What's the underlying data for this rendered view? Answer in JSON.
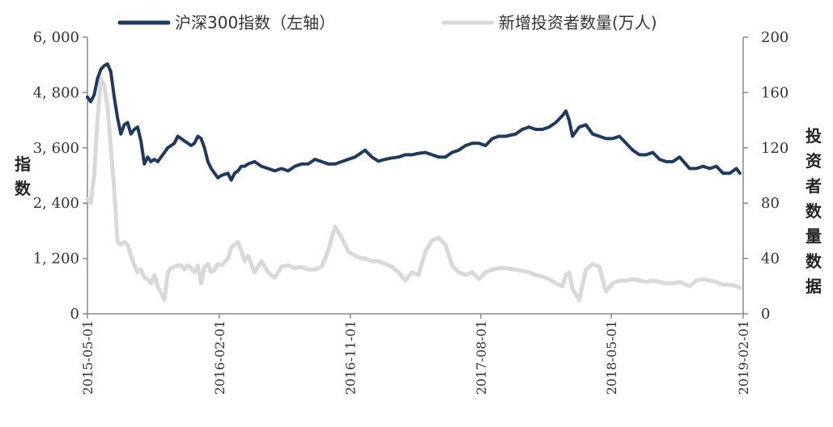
{
  "chart_data": {
    "type": "line",
    "legend": {
      "placement": "top",
      "items": [
        {
          "series": "index",
          "label": "沪深300指数（左轴）",
          "color": "#1f3a60"
        },
        {
          "series": "investors",
          "label": "新增投资者数量(万人)",
          "color": "#d9d9d9"
        }
      ]
    },
    "x_ticks": [
      "2015-05-01",
      "2016-02-01",
      "2016-11-01",
      "2017-08-01",
      "2018-05-01",
      "2019-02-01"
    ],
    "x_range": [
      "2015-05-01",
      "2019-02-01"
    ],
    "y_left": {
      "label": "指数",
      "range": [
        0,
        6000
      ],
      "ticks": [
        0,
        1200,
        2400,
        3600,
        4800,
        6000
      ],
      "tick_labels": [
        "0",
        "1, 200",
        "2, 400",
        "3, 600",
        "4, 800",
        "6, 000"
      ]
    },
    "y_right": {
      "label": "投资者数量数据",
      "range": [
        0,
        200
      ],
      "ticks": [
        0,
        40,
        80,
        120,
        160,
        200
      ],
      "tick_labels": [
        "0",
        "40",
        "80",
        "120",
        "160",
        "200"
      ]
    },
    "series": [
      {
        "key": "index",
        "name": "沪深300指数（左轴）",
        "axis": "left",
        "color": "#1f3a60",
        "points": [
          [
            "2015-05-01",
            4700
          ],
          [
            "2015-05-08",
            4600
          ],
          [
            "2015-05-15",
            4750
          ],
          [
            "2015-05-22",
            5100
          ],
          [
            "2015-05-29",
            5300
          ],
          [
            "2015-06-05",
            5380
          ],
          [
            "2015-06-12",
            5420
          ],
          [
            "2015-06-19",
            5250
          ],
          [
            "2015-06-26",
            4700
          ],
          [
            "2015-07-03",
            4250
          ],
          [
            "2015-07-10",
            3900
          ],
          [
            "2015-07-17",
            4100
          ],
          [
            "2015-07-24",
            4150
          ],
          [
            "2015-07-31",
            3900
          ],
          [
            "2015-08-07",
            4000
          ],
          [
            "2015-08-14",
            4050
          ],
          [
            "2015-08-21",
            3750
          ],
          [
            "2015-08-28",
            3250
          ],
          [
            "2015-09-04",
            3400
          ],
          [
            "2015-09-11",
            3300
          ],
          [
            "2015-09-18",
            3350
          ],
          [
            "2015-09-25",
            3300
          ],
          [
            "2015-10-09",
            3500
          ],
          [
            "2015-10-16",
            3600
          ],
          [
            "2015-10-23",
            3650
          ],
          [
            "2015-10-30",
            3700
          ],
          [
            "2015-11-06",
            3850
          ],
          [
            "2015-11-13",
            3800
          ],
          [
            "2015-11-20",
            3750
          ],
          [
            "2015-11-27",
            3700
          ],
          [
            "2015-12-04",
            3650
          ],
          [
            "2015-12-11",
            3700
          ],
          [
            "2015-12-18",
            3850
          ],
          [
            "2015-12-25",
            3800
          ],
          [
            "2016-01-01",
            3600
          ],
          [
            "2016-01-08",
            3300
          ],
          [
            "2016-01-15",
            3150
          ],
          [
            "2016-01-22",
            3050
          ],
          [
            "2016-01-29",
            2950
          ],
          [
            "2016-02-05",
            3000
          ],
          [
            "2016-02-19",
            3050
          ],
          [
            "2016-02-26",
            2900
          ],
          [
            "2016-03-04",
            3050
          ],
          [
            "2016-03-11",
            3100
          ],
          [
            "2016-03-18",
            3200
          ],
          [
            "2016-03-25",
            3200
          ],
          [
            "2016-04-01",
            3250
          ],
          [
            "2016-04-15",
            3300
          ],
          [
            "2016-04-29",
            3200
          ],
          [
            "2016-05-13",
            3150
          ],
          [
            "2016-05-27",
            3100
          ],
          [
            "2016-06-10",
            3150
          ],
          [
            "2016-06-24",
            3100
          ],
          [
            "2016-07-08",
            3200
          ],
          [
            "2016-07-22",
            3250
          ],
          [
            "2016-08-05",
            3250
          ],
          [
            "2016-08-19",
            3350
          ],
          [
            "2016-09-02",
            3300
          ],
          [
            "2016-09-16",
            3250
          ],
          [
            "2016-09-30",
            3250
          ],
          [
            "2016-10-14",
            3300
          ],
          [
            "2016-10-28",
            3350
          ],
          [
            "2016-11-11",
            3400
          ],
          [
            "2016-11-25",
            3500
          ],
          [
            "2016-12-02",
            3550
          ],
          [
            "2016-12-16",
            3400
          ],
          [
            "2016-12-30",
            3310
          ],
          [
            "2017-01-13",
            3350
          ],
          [
            "2017-01-27",
            3380
          ],
          [
            "2017-02-10",
            3400
          ],
          [
            "2017-02-24",
            3450
          ],
          [
            "2017-03-10",
            3450
          ],
          [
            "2017-03-24",
            3480
          ],
          [
            "2017-04-07",
            3500
          ],
          [
            "2017-04-21",
            3450
          ],
          [
            "2017-05-05",
            3400
          ],
          [
            "2017-05-19",
            3400
          ],
          [
            "2017-06-02",
            3500
          ],
          [
            "2017-06-16",
            3550
          ],
          [
            "2017-06-30",
            3650
          ],
          [
            "2017-07-14",
            3700
          ],
          [
            "2017-07-28",
            3700
          ],
          [
            "2017-08-11",
            3650
          ],
          [
            "2017-08-25",
            3800
          ],
          [
            "2017-09-08",
            3850
          ],
          [
            "2017-09-22",
            3850
          ],
          [
            "2017-10-13",
            3900
          ],
          [
            "2017-10-27",
            4000
          ],
          [
            "2017-11-10",
            4050
          ],
          [
            "2017-11-24",
            4000
          ],
          [
            "2017-12-08",
            4000
          ],
          [
            "2017-12-22",
            4050
          ],
          [
            "2018-01-05",
            4150
          ],
          [
            "2018-01-19",
            4300
          ],
          [
            "2018-01-26",
            4400
          ],
          [
            "2018-02-02",
            4200
          ],
          [
            "2018-02-09",
            3850
          ],
          [
            "2018-02-23",
            4050
          ],
          [
            "2018-03-09",
            4100
          ],
          [
            "2018-03-23",
            3900
          ],
          [
            "2018-04-06",
            3850
          ],
          [
            "2018-04-20",
            3800
          ],
          [
            "2018-05-04",
            3800
          ],
          [
            "2018-05-18",
            3850
          ],
          [
            "2018-06-01",
            3700
          ],
          [
            "2018-06-15",
            3550
          ],
          [
            "2018-06-29",
            3450
          ],
          [
            "2018-07-13",
            3450
          ],
          [
            "2018-07-27",
            3500
          ],
          [
            "2018-08-10",
            3350
          ],
          [
            "2018-08-24",
            3300
          ],
          [
            "2018-09-07",
            3300
          ],
          [
            "2018-09-21",
            3400
          ],
          [
            "2018-10-12",
            3150
          ],
          [
            "2018-10-26",
            3150
          ],
          [
            "2018-11-09",
            3200
          ],
          [
            "2018-11-23",
            3150
          ],
          [
            "2018-12-07",
            3200
          ],
          [
            "2018-12-21",
            3050
          ],
          [
            "2019-01-04",
            3050
          ],
          [
            "2019-01-18",
            3150
          ],
          [
            "2019-01-25",
            3050
          ]
        ]
      },
      {
        "key": "investors",
        "name": "新增投资者数量(万人)",
        "axis": "right",
        "color": "#d9d9d9",
        "points": [
          [
            "2015-05-01",
            83
          ],
          [
            "2015-05-08",
            80
          ],
          [
            "2015-05-15",
            100
          ],
          [
            "2015-05-22",
            140
          ],
          [
            "2015-05-29",
            170
          ],
          [
            "2015-06-05",
            165
          ],
          [
            "2015-06-12",
            150
          ],
          [
            "2015-06-19",
            120
          ],
          [
            "2015-06-26",
            90
          ],
          [
            "2015-07-03",
            52
          ],
          [
            "2015-07-10",
            50
          ],
          [
            "2015-07-17",
            52
          ],
          [
            "2015-07-24",
            50
          ],
          [
            "2015-07-31",
            42
          ],
          [
            "2015-08-07",
            35
          ],
          [
            "2015-08-14",
            30
          ],
          [
            "2015-08-21",
            32
          ],
          [
            "2015-08-28",
            26
          ],
          [
            "2015-09-04",
            25
          ],
          [
            "2015-09-11",
            22
          ],
          [
            "2015-09-18",
            28
          ],
          [
            "2015-09-25",
            20
          ],
          [
            "2015-10-09",
            10
          ],
          [
            "2015-10-16",
            30
          ],
          [
            "2015-10-23",
            33
          ],
          [
            "2015-10-30",
            34
          ],
          [
            "2015-11-06",
            35
          ],
          [
            "2015-11-13",
            35
          ],
          [
            "2015-11-20",
            32
          ],
          [
            "2015-11-27",
            35
          ],
          [
            "2015-12-04",
            33
          ],
          [
            "2015-12-11",
            30
          ],
          [
            "2015-12-18",
            35
          ],
          [
            "2015-12-25",
            22
          ],
          [
            "2016-01-01",
            34
          ],
          [
            "2016-01-08",
            36
          ],
          [
            "2016-01-15",
            30
          ],
          [
            "2016-01-22",
            32
          ],
          [
            "2016-01-29",
            36
          ],
          [
            "2016-02-05",
            35
          ],
          [
            "2016-02-19",
            40
          ],
          [
            "2016-02-26",
            48
          ],
          [
            "2016-03-04",
            50
          ],
          [
            "2016-03-11",
            52
          ],
          [
            "2016-03-18",
            46
          ],
          [
            "2016-03-25",
            38
          ],
          [
            "2016-04-01",
            42
          ],
          [
            "2016-04-15",
            30
          ],
          [
            "2016-04-29",
            38
          ],
          [
            "2016-05-13",
            30
          ],
          [
            "2016-05-27",
            26
          ],
          [
            "2016-06-10",
            34
          ],
          [
            "2016-06-24",
            35
          ],
          [
            "2016-07-08",
            33
          ],
          [
            "2016-07-22",
            34
          ],
          [
            "2016-08-05",
            32
          ],
          [
            "2016-08-19",
            32
          ],
          [
            "2016-09-02",
            34
          ],
          [
            "2016-09-16",
            46
          ],
          [
            "2016-09-30",
            63
          ],
          [
            "2016-10-14",
            55
          ],
          [
            "2016-10-28",
            45
          ],
          [
            "2016-11-11",
            42
          ],
          [
            "2016-11-25",
            40
          ],
          [
            "2016-12-02",
            40
          ],
          [
            "2016-12-16",
            38
          ],
          [
            "2016-12-30",
            38
          ],
          [
            "2017-01-13",
            36
          ],
          [
            "2017-01-27",
            34
          ],
          [
            "2017-02-10",
            30
          ],
          [
            "2017-02-24",
            24
          ],
          [
            "2017-03-10",
            30
          ],
          [
            "2017-03-24",
            28
          ],
          [
            "2017-04-07",
            45
          ],
          [
            "2017-04-21",
            53
          ],
          [
            "2017-05-05",
            55
          ],
          [
            "2017-05-19",
            50
          ],
          [
            "2017-06-02",
            35
          ],
          [
            "2017-06-16",
            30
          ],
          [
            "2017-06-30",
            28
          ],
          [
            "2017-07-14",
            30
          ],
          [
            "2017-07-28",
            25
          ],
          [
            "2017-08-11",
            30
          ],
          [
            "2017-08-25",
            32
          ],
          [
            "2017-09-08",
            33
          ],
          [
            "2017-09-22",
            33
          ],
          [
            "2017-10-13",
            32
          ],
          [
            "2017-10-27",
            31
          ],
          [
            "2017-11-10",
            30
          ],
          [
            "2017-11-24",
            28
          ],
          [
            "2017-12-08",
            27
          ],
          [
            "2017-12-22",
            25
          ],
          [
            "2018-01-05",
            22
          ],
          [
            "2018-01-19",
            20
          ],
          [
            "2018-01-26",
            28
          ],
          [
            "2018-02-02",
            30
          ],
          [
            "2018-02-09",
            18
          ],
          [
            "2018-02-23",
            10
          ],
          [
            "2018-03-09",
            32
          ],
          [
            "2018-03-23",
            36
          ],
          [
            "2018-04-06",
            34
          ],
          [
            "2018-04-20",
            16
          ],
          [
            "2018-05-04",
            22
          ],
          [
            "2018-05-18",
            24
          ],
          [
            "2018-06-01",
            24
          ],
          [
            "2018-06-15",
            25
          ],
          [
            "2018-06-29",
            24
          ],
          [
            "2018-07-13",
            23
          ],
          [
            "2018-07-27",
            24
          ],
          [
            "2018-08-10",
            23
          ],
          [
            "2018-08-24",
            22
          ],
          [
            "2018-09-07",
            22
          ],
          [
            "2018-09-21",
            23
          ],
          [
            "2018-10-12",
            20
          ],
          [
            "2018-10-26",
            24
          ],
          [
            "2018-11-09",
            25
          ],
          [
            "2018-11-23",
            24
          ],
          [
            "2018-12-07",
            23
          ],
          [
            "2018-12-21",
            21
          ],
          [
            "2019-01-04",
            21
          ],
          [
            "2019-01-18",
            20
          ],
          [
            "2019-01-25",
            19
          ]
        ]
      }
    ]
  }
}
